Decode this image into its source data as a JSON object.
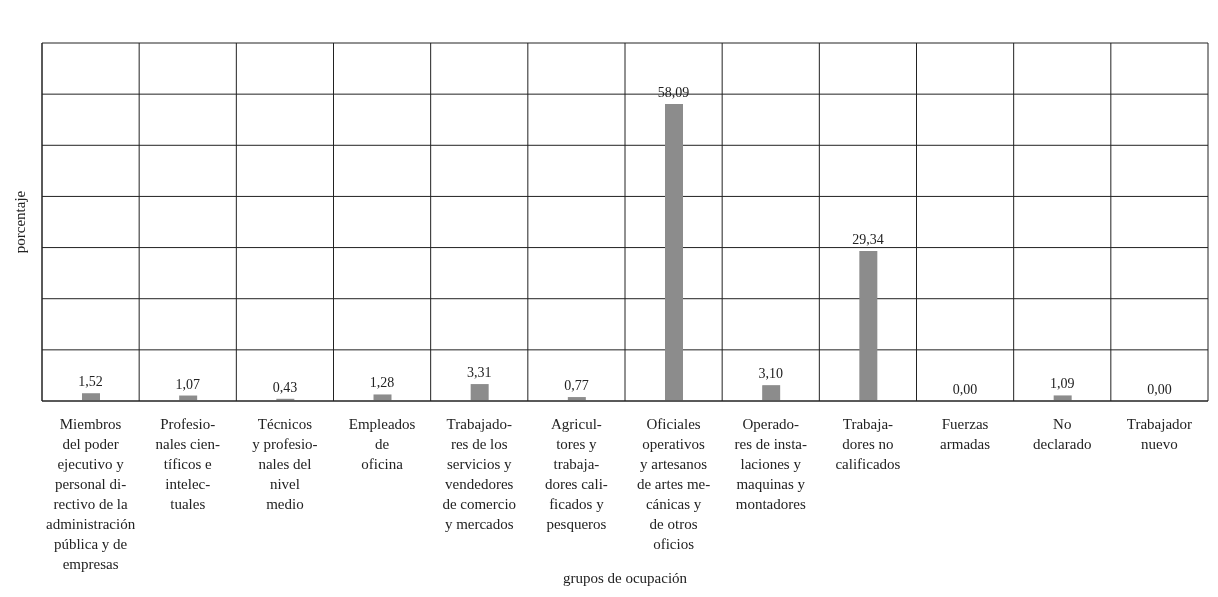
{
  "chart_data": {
    "type": "bar",
    "xlabel": "grupos de ocupación",
    "ylabel": "porcentaje",
    "categories": [
      "Miembros\ndel poder\nejecutivo y\npersonal di-\nrectivo de la\nadministración\npública y de\nempresas",
      "Profesio-\nnales cien-\ntíficos e\nintelec-\ntuales",
      "Técnicos\ny profesio-\nnales del\nnivel\nmedio",
      "Empleados\nde\noficina",
      "Trabajado-\nres de los\nservicios y\nvendedores\nde comercio\ny mercados",
      "Agricul-\ntores y\ntrabaja-\ndores cali-\nficados  y\npesqueros",
      "Oficiales\noperativos\ny artesanos\nde artes me-\ncánicas y\nde otros\noficios",
      "Operado-\nres de insta-\nlaciones y\nmaquinas y\nmontadores",
      "Trabaja-\ndores no\ncalificados",
      "Fuerzas\narmadas",
      "No\ndeclarado",
      "Trabajador\nnuevo"
    ],
    "values": [
      1.52,
      1.07,
      0.43,
      1.28,
      3.31,
      0.77,
      58.09,
      3.1,
      29.34,
      0.0,
      1.09,
      0.0
    ],
    "value_labels": [
      "1,52",
      "1,07",
      "0,43",
      "1,28",
      "3,31",
      "0,77",
      "58,09",
      "3,10",
      "29,34",
      "0,00",
      "1,09",
      "0,00"
    ],
    "color": "#8c8c8c",
    "ylim": [
      0,
      70
    ],
    "tick_labels": "x",
    "grid": true
  }
}
